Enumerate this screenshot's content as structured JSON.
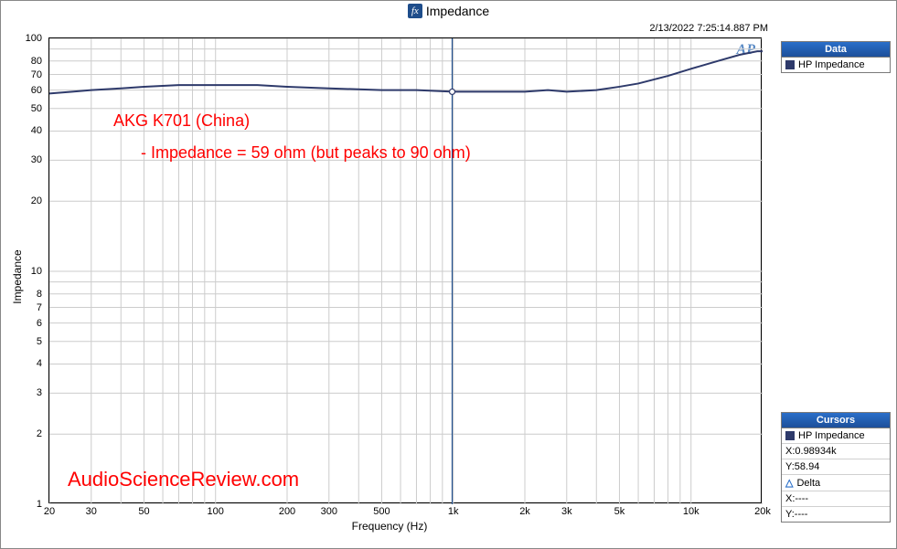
{
  "title": "Impedance",
  "title_icon_text": "fx",
  "timestamp": "2/13/2022 7:25:14.887 PM",
  "xlabel": "Frequency (Hz)",
  "ylabel": "Impedance",
  "ap_logo": "AP",
  "annotations": {
    "line1": "AKG K701 (China)",
    "line2": "- Impedance = 59 ohm (but peaks to 90 ohm)",
    "watermark": "AudioScienceReview.com"
  },
  "chart": {
    "type": "line-loglog",
    "xlim": [
      20,
      20000
    ],
    "ylim": [
      1,
      100
    ],
    "xticks": [
      {
        "v": 20,
        "label": "20"
      },
      {
        "v": 30,
        "label": "30"
      },
      {
        "v": 50,
        "label": "50"
      },
      {
        "v": 100,
        "label": "100"
      },
      {
        "v": 200,
        "label": "200"
      },
      {
        "v": 300,
        "label": "300"
      },
      {
        "v": 500,
        "label": "500"
      },
      {
        "v": 1000,
        "label": "1k"
      },
      {
        "v": 2000,
        "label": "2k"
      },
      {
        "v": 3000,
        "label": "3k"
      },
      {
        "v": 5000,
        "label": "5k"
      },
      {
        "v": 10000,
        "label": "10k"
      },
      {
        "v": 20000,
        "label": "20k"
      }
    ],
    "yticks": [
      {
        "v": 1,
        "label": "1"
      },
      {
        "v": 2,
        "label": "2"
      },
      {
        "v": 3,
        "label": "3"
      },
      {
        "v": 4,
        "label": "4"
      },
      {
        "v": 5,
        "label": "5"
      },
      {
        "v": 6,
        "label": "6"
      },
      {
        "v": 7,
        "label": "7"
      },
      {
        "v": 8,
        "label": "8"
      },
      {
        "v": 10,
        "label": "10"
      },
      {
        "v": 20,
        "label": "20"
      },
      {
        "v": 30,
        "label": "30"
      },
      {
        "v": 40,
        "label": "40"
      },
      {
        "v": 50,
        "label": "50"
      },
      {
        "v": 60,
        "label": "60"
      },
      {
        "v": 70,
        "label": "70"
      },
      {
        "v": 80,
        "label": "80"
      },
      {
        "v": 100,
        "label": "100"
      }
    ],
    "xgrid_minor": [
      40,
      60,
      70,
      80,
      90,
      400,
      600,
      700,
      800,
      900,
      4000,
      6000,
      7000,
      8000,
      9000
    ],
    "ygrid_minor": [
      9,
      90
    ],
    "line_color": "#2e3a6b",
    "grid_color": "#cccccc",
    "background_color": "#ffffff",
    "cursor_x": 989.34,
    "series": {
      "name": "HP Impedance",
      "points": [
        [
          20,
          58
        ],
        [
          25,
          59
        ],
        [
          30,
          60
        ],
        [
          40,
          61
        ],
        [
          50,
          62
        ],
        [
          70,
          63
        ],
        [
          100,
          63
        ],
        [
          150,
          63
        ],
        [
          200,
          62
        ],
        [
          300,
          61
        ],
        [
          500,
          60
        ],
        [
          700,
          60
        ],
        [
          1000,
          59
        ],
        [
          1500,
          59
        ],
        [
          2000,
          59
        ],
        [
          2500,
          60
        ],
        [
          3000,
          59
        ],
        [
          4000,
          60
        ],
        [
          5000,
          62
        ],
        [
          6000,
          64
        ],
        [
          8000,
          69
        ],
        [
          10000,
          74
        ],
        [
          13000,
          80
        ],
        [
          16000,
          85
        ],
        [
          19000,
          88
        ],
        [
          20000,
          88
        ]
      ]
    }
  },
  "data_panel": {
    "header": "Data",
    "series_label": "HP Impedance"
  },
  "cursors_panel": {
    "header": "Cursors",
    "series_label": "HP Impedance",
    "x_label": "X:0.98934k",
    "y_label": "Y:58.94",
    "delta_label": "Delta",
    "dx_label": "X:----",
    "dy_label": "Y:----"
  }
}
